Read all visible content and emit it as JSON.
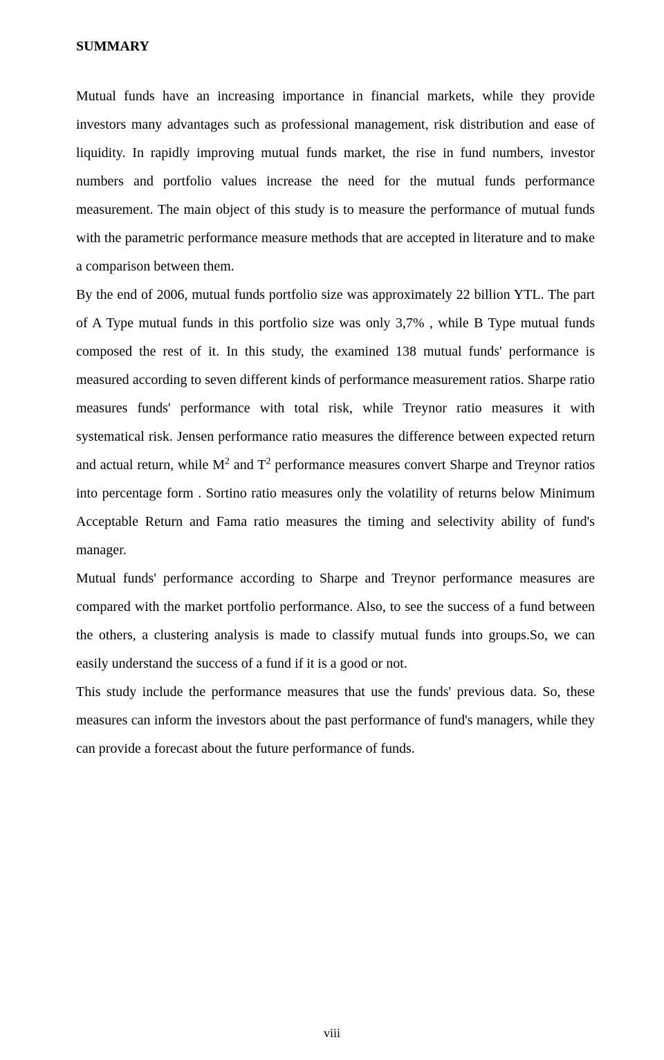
{
  "heading": "SUMMARY",
  "intro": "Mutual funds have an increasing importance in financial markets, while they provide investors many advantages such as professional management, risk distribution and ease of liquidity. In rapidly improving mutual funds market, the rise in fund numbers, investor numbers and portfolio values increase the need for the mutual funds performance measurement. The main object of this study is to measure the performance of mutual funds with the parametric performance measure methods that are accepted in literature and to make a comparison between them.",
  "midA": "By the end of 2006, mutual funds portfolio size was approximately 22 billion YTL. The part of A Type mutual funds in this portfolio size was only 3,7% , while B Type mutual funds composed the rest of it. In this study, the examined 138 mutual funds' performance is measured according to seven different kinds of performance measurement ratios. Sharpe ratio measures funds' performance with total risk, while Treynor ratio measures it with systematical risk. Jensen performance ratio measures the difference between expected return and actual return, while M",
  "midB": " and T",
  "midC": " performance measures convert Sharpe and Treynor ratios into percentage form . Sortino ratio measures only the volatility of returns below Minimum Acceptable Return and Fama ratio measures the timing and selectivity ability of fund's manager.",
  "sup": "2",
  "mutual": "Mutual funds' performance according to Sharpe and Treynor performance measures are compared with the market portfolio performance. Also, to see the success of a fund between the others, a clustering analysis is made to classify mutual funds into groups.So, we can easily understand the success of a fund if it is a good or not.",
  "closing": "This study include the performance measures that use the funds' previous data. So, these measures can inform the investors about the past performance of fund's managers, while they can provide a forecast about the future performance of funds.",
  "pageNumber": "viii"
}
